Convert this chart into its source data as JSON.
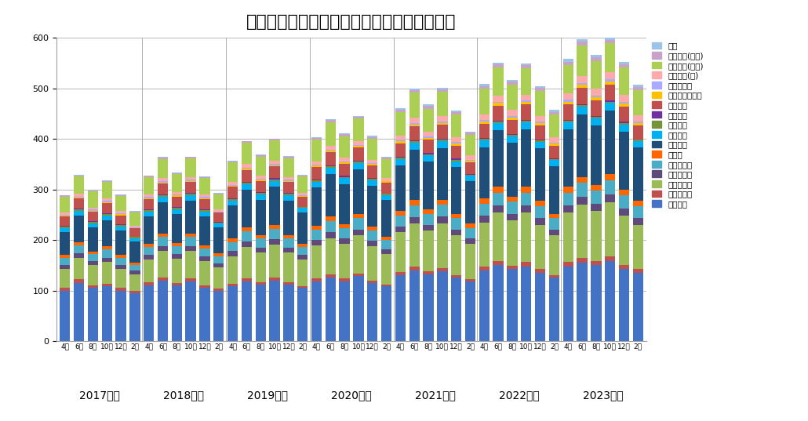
{
  "title": "外来化学療法センターにおける薬物療法件数",
  "categories": [
    "4月",
    "6月",
    "8月",
    "10月",
    "12月",
    "2月",
    "4月",
    "6月",
    "8月",
    "10月",
    "12月",
    "2月",
    "4月",
    "6月",
    "8月",
    "10月",
    "12月",
    "2月",
    "4月",
    "6月",
    "8月",
    "10月",
    "12月",
    "2月",
    "4月",
    "6月",
    "8月",
    "10月",
    "12月",
    "2月",
    "4月",
    "6月",
    "8月",
    "10月",
    "12月",
    "2月",
    "4月",
    "6月",
    "8月",
    "10月",
    "12月",
    "2月"
  ],
  "fiscal_years": [
    "2017年度",
    "2018年度",
    "2019年度",
    "2020年度",
    "2021年度",
    "2022年度",
    "2023年度"
  ],
  "fiscal_year_centers": [
    2.5,
    8.5,
    14.5,
    20.5,
    26.5,
    32.5,
    38.5
  ],
  "series": [
    {
      "name": "腫瘍内科",
      "color": "#4472C4",
      "values": [
        100,
        115,
        105,
        108,
        100,
        95,
        110,
        120,
        110,
        118,
        105,
        100,
        108,
        118,
        112,
        120,
        112,
        105,
        118,
        125,
        118,
        128,
        115,
        108,
        130,
        140,
        132,
        138,
        125,
        118,
        140,
        150,
        142,
        148,
        135,
        125,
        148,
        155,
        150,
        158,
        142,
        135
      ]
    },
    {
      "name": "消化器外科",
      "color": "#C0504D",
      "values": [
        5,
        7,
        5,
        6,
        5,
        4,
        6,
        6,
        5,
        6,
        5,
        4,
        5,
        6,
        5,
        6,
        5,
        4,
        6,
        7,
        6,
        6,
        5,
        4,
        7,
        7,
        6,
        7,
        6,
        5,
        7,
        8,
        7,
        8,
        7,
        6,
        8,
        9,
        8,
        9,
        8,
        7
      ]
    },
    {
      "name": "消化器内科",
      "color": "#9BBB59",
      "values": [
        38,
        43,
        40,
        42,
        38,
        33,
        45,
        52,
        48,
        54,
        48,
        42,
        55,
        62,
        58,
        65,
        58,
        52,
        65,
        72,
        68,
        75,
        68,
        60,
        78,
        85,
        80,
        88,
        78,
        70,
        88,
        96,
        90,
        98,
        88,
        78,
        98,
        106,
        100,
        108,
        98,
        88
      ]
    },
    {
      "name": "呼吸器外科",
      "color": "#604A7B",
      "values": [
        8,
        9,
        8,
        9,
        8,
        7,
        9,
        10,
        9,
        10,
        9,
        8,
        10,
        11,
        10,
        11,
        10,
        9,
        11,
        12,
        11,
        12,
        11,
        10,
        12,
        13,
        12,
        13,
        12,
        11,
        13,
        14,
        13,
        14,
        13,
        12,
        14,
        15,
        14,
        15,
        14,
        13
      ]
    },
    {
      "name": "呼吸器内科",
      "color": "#4BACC6",
      "values": [
        14,
        16,
        14,
        16,
        14,
        12,
        16,
        18,
        16,
        18,
        16,
        14,
        18,
        20,
        18,
        20,
        18,
        16,
        20,
        22,
        20,
        22,
        20,
        18,
        22,
        24,
        22,
        24,
        22,
        20,
        24,
        26,
        24,
        26,
        24,
        22,
        26,
        28,
        26,
        28,
        26,
        24
      ]
    },
    {
      "name": "婦人科",
      "color": "#FF6600",
      "values": [
        5,
        6,
        5,
        6,
        5,
        4,
        6,
        7,
        6,
        7,
        6,
        5,
        7,
        8,
        7,
        8,
        7,
        6,
        8,
        9,
        8,
        9,
        8,
        7,
        9,
        10,
        9,
        10,
        9,
        8,
        10,
        11,
        10,
        11,
        10,
        9,
        11,
        12,
        11,
        12,
        11,
        10
      ]
    },
    {
      "name": "乳腺外科",
      "color": "#1F4E79",
      "values": [
        45,
        52,
        48,
        52,
        48,
        42,
        55,
        62,
        58,
        65,
        58,
        52,
        65,
        74,
        70,
        76,
        68,
        62,
        76,
        84,
        80,
        88,
        80,
        72,
        90,
        100,
        94,
        102,
        92,
        84,
        102,
        112,
        106,
        114,
        104,
        94,
        114,
        124,
        118,
        126,
        116,
        106
      ]
    },
    {
      "name": "泌尿器科",
      "color": "#00B0F0",
      "values": [
        8,
        9,
        8,
        9,
        8,
        7,
        9,
        10,
        9,
        10,
        9,
        8,
        10,
        11,
        10,
        11,
        10,
        9,
        11,
        12,
        11,
        12,
        11,
        10,
        12,
        13,
        12,
        13,
        12,
        11,
        13,
        14,
        13,
        14,
        13,
        12,
        14,
        15,
        14,
        15,
        14,
        13
      ]
    },
    {
      "name": "神経内科",
      "color": "#76933C",
      "values": [
        3,
        3,
        3,
        3,
        3,
        2,
        3,
        3,
        3,
        3,
        3,
        2,
        3,
        3,
        3,
        3,
        3,
        2,
        3,
        3,
        3,
        3,
        3,
        2,
        3,
        3,
        3,
        3,
        3,
        2,
        3,
        3,
        3,
        3,
        3,
        2,
        3,
        3,
        3,
        3,
        3,
        2
      ]
    },
    {
      "name": "賢臓内科",
      "color": "#7030A0",
      "values": [
        2,
        2,
        2,
        2,
        2,
        1,
        2,
        2,
        2,
        2,
        2,
        1,
        2,
        2,
        2,
        2,
        2,
        1,
        2,
        2,
        2,
        2,
        2,
        1,
        2,
        2,
        2,
        2,
        2,
        1,
        2,
        2,
        2,
        2,
        2,
        1,
        2,
        2,
        2,
        2,
        2,
        1
      ]
    },
    {
      "name": "血液内科",
      "color": "#C0504D",
      "values": [
        18,
        20,
        18,
        20,
        18,
        16,
        20,
        22,
        20,
        22,
        20,
        18,
        22,
        24,
        22,
        24,
        22,
        20,
        24,
        26,
        24,
        26,
        24,
        22,
        26,
        28,
        26,
        28,
        26,
        24,
        28,
        30,
        28,
        30,
        28,
        26,
        30,
        32,
        30,
        32,
        30,
        28
      ]
    },
    {
      "name": "がん治療支援科",
      "color": "#FFC000",
      "values": [
        2,
        2,
        2,
        2,
        2,
        1,
        2,
        2,
        2,
        2,
        2,
        1,
        2,
        2,
        2,
        2,
        2,
        1,
        3,
        3,
        3,
        3,
        3,
        2,
        4,
        4,
        4,
        4,
        4,
        3,
        5,
        5,
        5,
        5,
        5,
        4,
        6,
        6,
        6,
        6,
        6,
        5
      ]
    },
    {
      "name": "リウマチ科",
      "color": "#AAABFF",
      "values": [
        2,
        2,
        2,
        2,
        2,
        1,
        2,
        2,
        2,
        2,
        2,
        1,
        2,
        2,
        2,
        2,
        2,
        1,
        2,
        2,
        2,
        2,
        2,
        1,
        3,
        3,
        3,
        3,
        3,
        2,
        3,
        3,
        3,
        3,
        3,
        2,
        4,
        4,
        4,
        4,
        4,
        3
      ]
    },
    {
      "name": "生物学的(消)",
      "color": "#FFAAAA",
      "values": [
        4,
        5,
        4,
        5,
        4,
        3,
        5,
        6,
        5,
        6,
        5,
        4,
        6,
        7,
        6,
        7,
        6,
        5,
        7,
        8,
        7,
        8,
        7,
        6,
        9,
        10,
        9,
        10,
        9,
        8,
        11,
        12,
        11,
        12,
        11,
        10,
        13,
        14,
        13,
        14,
        13,
        12
      ]
    },
    {
      "name": "生物学的(リウ)",
      "color": "#AACF53",
      "values": [
        32,
        35,
        32,
        33,
        30,
        27,
        35,
        38,
        35,
        36,
        33,
        30,
        38,
        42,
        38,
        40,
        37,
        33,
        42,
        46,
        42,
        44,
        41,
        37,
        46,
        50,
        46,
        48,
        45,
        41,
        50,
        55,
        50,
        52,
        49,
        45,
        55,
        60,
        55,
        57,
        54,
        50
      ]
    },
    {
      "name": "生物学的(皮膚)",
      "color": "#C8A2C8",
      "values": [
        2,
        2,
        2,
        2,
        2,
        1,
        2,
        3,
        2,
        3,
        2,
        2,
        3,
        3,
        3,
        3,
        3,
        2,
        4,
        4,
        4,
        4,
        4,
        3,
        5,
        5,
        5,
        5,
        5,
        4,
        6,
        6,
        6,
        6,
        6,
        5,
        7,
        7,
        7,
        7,
        7,
        6
      ]
    },
    {
      "name": "治験",
      "color": "#9DC3E6",
      "values": [
        1,
        1,
        1,
        1,
        1,
        1,
        1,
        1,
        1,
        1,
        1,
        1,
        1,
        1,
        1,
        1,
        1,
        1,
        2,
        2,
        2,
        2,
        2,
        2,
        3,
        3,
        3,
        3,
        3,
        3,
        4,
        4,
        4,
        4,
        4,
        4,
        5,
        5,
        5,
        5,
        5,
        5
      ]
    }
  ],
  "ylim": [
    0,
    600
  ],
  "yticks": [
    0,
    100,
    200,
    300,
    400,
    500,
    600
  ],
  "background_color": "#FFFFFF",
  "grid_color": "#BFBFBF",
  "title_fontsize": 16,
  "bar_width": 0.75
}
